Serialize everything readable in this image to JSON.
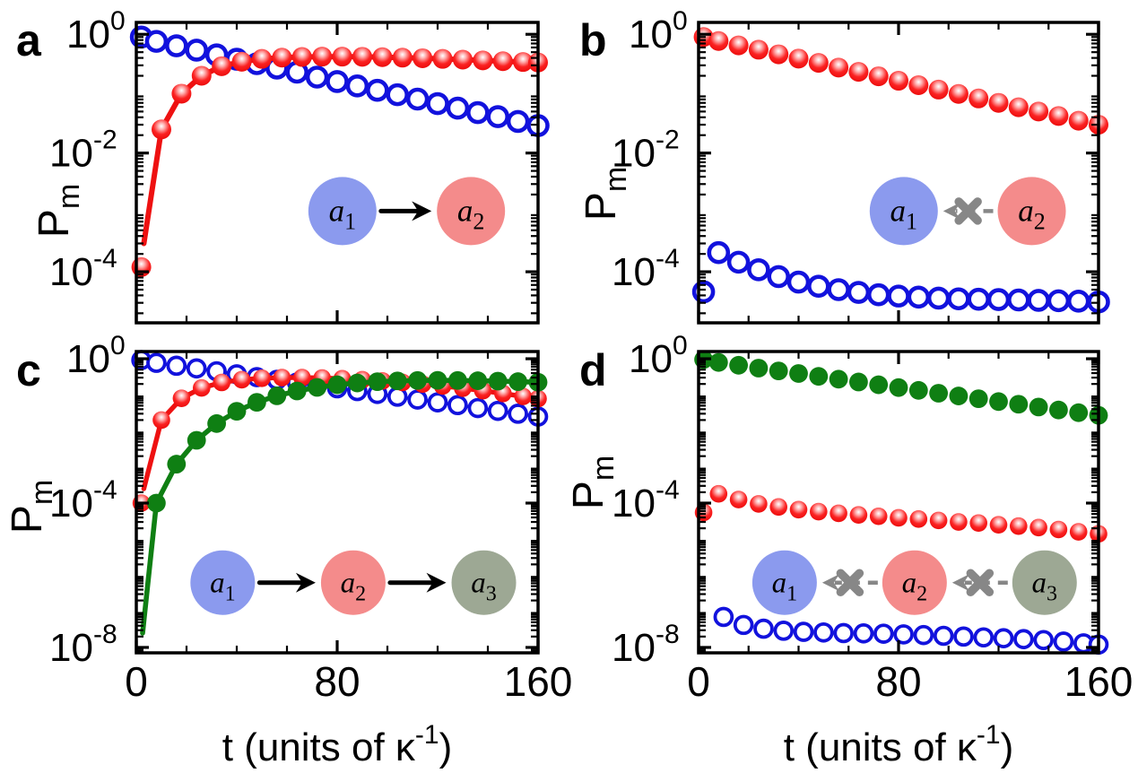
{
  "figure": {
    "x_axis_label": {
      "pre": "t (units of ",
      "symbol": "κ",
      "exponent": "-1",
      "post": ")"
    },
    "y_axis_label": {
      "base": "P",
      "subscript": "m"
    }
  },
  "colors": {
    "blue": "#1212dd",
    "red": "#f01010",
    "red_line": "#ee1111",
    "green": "#0f7f13",
    "inset_blue": "#8b9aee",
    "inset_pink": "#f48b8b",
    "inset_sage": "#9da894",
    "gray_arrow": "#878787",
    "black": "#000000"
  },
  "chart_data": [
    {
      "panel": "a",
      "type": "line",
      "xlim": [
        0,
        160
      ],
      "x_major_ticks": [
        0,
        80,
        160
      ],
      "x_minor_step": 20,
      "show_x_tick_labels": false,
      "y_major_exponents": [
        0,
        -2,
        -4
      ],
      "ylim_exponents": [
        0.2,
        -4.86
      ],
      "series": [
        {
          "id": "a1-open-blue-circles",
          "marker": "open-circle",
          "color_key": "blue",
          "line": true,
          "t": [
            2,
            8,
            16,
            24,
            32,
            40,
            48,
            56,
            64,
            72,
            80,
            88,
            96,
            104,
            112,
            120,
            128,
            136,
            144,
            152,
            160
          ],
          "v": [
            0.9,
            0.76,
            0.64,
            0.54,
            0.45,
            0.38,
            0.32,
            0.27,
            0.23,
            0.19,
            0.16,
            0.135,
            0.114,
            0.096,
            0.081,
            0.068,
            0.057,
            0.048,
            0.041,
            0.034,
            0.029
          ]
        },
        {
          "id": "a2-red-spheres",
          "marker": "sphere",
          "color_key": "red",
          "line": true,
          "t": [
            2,
            10,
            18,
            26,
            34,
            42,
            50,
            58,
            66,
            74,
            82,
            90,
            98,
            106,
            114,
            122,
            130,
            138,
            146,
            154,
            160
          ],
          "v": [
            0.00012,
            0.025,
            0.1,
            0.2,
            0.29,
            0.345,
            0.385,
            0.405,
            0.415,
            0.42,
            0.42,
            0.418,
            0.412,
            0.404,
            0.395,
            0.385,
            0.374,
            0.363,
            0.352,
            0.341,
            0.335
          ],
          "line_t": [
            3,
            10,
            18,
            26,
            34,
            42,
            50,
            58,
            66,
            74,
            82,
            90,
            98,
            106,
            114,
            122,
            130,
            138,
            146,
            154,
            160
          ],
          "line_v": [
            0.0003,
            0.025,
            0.1,
            0.2,
            0.29,
            0.345,
            0.385,
            0.405,
            0.415,
            0.42,
            0.42,
            0.418,
            0.412,
            0.404,
            0.395,
            0.385,
            0.374,
            0.363,
            0.352,
            0.341,
            0.335
          ]
        }
      ],
      "inset": {
        "nodes": [
          {
            "base": "a",
            "sub": "1",
            "fill_key": "inset_blue"
          },
          {
            "base": "a",
            "sub": "2",
            "fill_key": "inset_pink"
          }
        ],
        "links": [
          {
            "from": 0,
            "to": 1,
            "blocked": false
          }
        ]
      }
    },
    {
      "panel": "b",
      "type": "line",
      "xlim": [
        0,
        160
      ],
      "x_major_ticks": [
        0,
        80,
        160
      ],
      "x_minor_step": 20,
      "show_x_tick_labels": false,
      "y_major_exponents": [
        0,
        -2,
        -4
      ],
      "ylim_exponents": [
        0.2,
        -4.86
      ],
      "series": [
        {
          "id": "a2-red-spheres",
          "marker": "sphere",
          "color_key": "red",
          "line": false,
          "t": [
            2,
            8,
            16,
            24,
            32,
            40,
            48,
            56,
            64,
            72,
            80,
            88,
            96,
            104,
            112,
            120,
            128,
            136,
            144,
            152,
            160
          ],
          "v": [
            0.9,
            0.77,
            0.65,
            0.55,
            0.46,
            0.39,
            0.33,
            0.275,
            0.233,
            0.196,
            0.165,
            0.139,
            0.117,
            0.099,
            0.083,
            0.07,
            0.059,
            0.05,
            0.042,
            0.035,
            0.03
          ]
        },
        {
          "id": "a1-open-blue-circles",
          "marker": "open-circle",
          "color_key": "blue",
          "line": false,
          "t": [
            2,
            8,
            16,
            24,
            32,
            40,
            48,
            56,
            64,
            72,
            80,
            88,
            96,
            104,
            112,
            120,
            128,
            136,
            144,
            152,
            160
          ],
          "v": [
            4.6e-05,
            0.00021,
            0.000145,
            0.000108,
            8.3e-05,
            6.7e-05,
            5.7e-05,
            5e-05,
            4.5e-05,
            4.1e-05,
            3.9e-05,
            3.75e-05,
            3.6e-05,
            3.5e-05,
            3.45e-05,
            3.4e-05,
            3.35e-05,
            3.3e-05,
            3.25e-05,
            3.2e-05,
            3.1e-05
          ]
        }
      ],
      "inset": {
        "nodes": [
          {
            "base": "a",
            "sub": "1",
            "fill_key": "inset_blue"
          },
          {
            "base": "a",
            "sub": "2",
            "fill_key": "inset_pink"
          }
        ],
        "links": [
          {
            "from": 1,
            "to": 0,
            "blocked": true
          }
        ]
      }
    },
    {
      "panel": "c",
      "type": "line",
      "xlim": [
        0,
        160
      ],
      "x_major_ticks": [
        0,
        80,
        160
      ],
      "x_minor_step": 20,
      "show_x_tick_labels": true,
      "y_major_exponents": [
        0,
        -4,
        -8
      ],
      "ylim_exponents": [
        0.2,
        -8.15
      ],
      "series": [
        {
          "id": "a1-open-blue-circles",
          "marker": "open-circle",
          "color_key": "blue",
          "line": true,
          "t": [
            2,
            8,
            16,
            24,
            32,
            40,
            48,
            56,
            64,
            72,
            80,
            88,
            96,
            104,
            112,
            120,
            128,
            136,
            144,
            152,
            160
          ],
          "v": [
            0.92,
            0.77,
            0.64,
            0.54,
            0.45,
            0.37,
            0.31,
            0.26,
            0.22,
            0.182,
            0.152,
            0.127,
            0.106,
            0.089,
            0.074,
            0.062,
            0.052,
            0.043,
            0.036,
            0.03,
            0.025
          ]
        },
        {
          "id": "a2-red-spheres",
          "marker": "sphere",
          "color_key": "red",
          "line": true,
          "t": [
            2,
            10,
            18,
            26,
            34,
            42,
            50,
            58,
            66,
            74,
            82,
            90,
            98,
            106,
            114,
            122,
            130,
            138,
            146,
            154,
            160
          ],
          "v": [
            0.0001,
            0.02,
            0.08,
            0.155,
            0.22,
            0.263,
            0.288,
            0.3,
            0.3,
            0.293,
            0.28,
            0.263,
            0.243,
            0.221,
            0.198,
            0.175,
            0.152,
            0.13,
            0.109,
            0.09,
            0.078
          ],
          "line_t": [
            3,
            10,
            18,
            26,
            34,
            42,
            50,
            58,
            66,
            74,
            82,
            90,
            98,
            106,
            114,
            122,
            130,
            138,
            146,
            154,
            160
          ],
          "line_v": [
            0.00025,
            0.02,
            0.08,
            0.155,
            0.22,
            0.263,
            0.288,
            0.3,
            0.3,
            0.293,
            0.28,
            0.263,
            0.243,
            0.221,
            0.198,
            0.175,
            0.152,
            0.13,
            0.109,
            0.09,
            0.078
          ]
        },
        {
          "id": "a3-green-circles",
          "marker": "filled-circle",
          "color_key": "green",
          "line": true,
          "t": [
            8,
            16,
            24,
            32,
            40,
            48,
            56,
            64,
            72,
            80,
            88,
            96,
            104,
            112,
            120,
            128,
            136,
            144,
            152,
            160
          ],
          "v": [
            0.0001,
            0.0012,
            0.0055,
            0.016,
            0.035,
            0.062,
            0.094,
            0.128,
            0.161,
            0.19,
            0.213,
            0.231,
            0.243,
            0.25,
            0.252,
            0.25,
            0.246,
            0.24,
            0.232,
            0.223
          ],
          "line_t": [
            2.5,
            8,
            16,
            24,
            32,
            40,
            48,
            56,
            64,
            72,
            80,
            88,
            96,
            104,
            112,
            120,
            128,
            136,
            144,
            152,
            160
          ],
          "line_v": [
            2.5e-08,
            0.0001,
            0.0012,
            0.0055,
            0.016,
            0.035,
            0.062,
            0.094,
            0.128,
            0.161,
            0.19,
            0.213,
            0.231,
            0.243,
            0.25,
            0.252,
            0.25,
            0.246,
            0.24,
            0.232,
            0.223
          ]
        }
      ],
      "inset": {
        "nodes": [
          {
            "base": "a",
            "sub": "1",
            "fill_key": "inset_blue"
          },
          {
            "base": "a",
            "sub": "2",
            "fill_key": "inset_pink"
          },
          {
            "base": "a",
            "sub": "3",
            "fill_key": "inset_sage"
          }
        ],
        "links": [
          {
            "from": 0,
            "to": 1,
            "blocked": false
          },
          {
            "from": 1,
            "to": 2,
            "blocked": false
          }
        ]
      }
    },
    {
      "panel": "d",
      "type": "line",
      "xlim": [
        0,
        160
      ],
      "x_major_ticks": [
        0,
        80,
        160
      ],
      "x_minor_step": 20,
      "show_x_tick_labels": true,
      "y_major_exponents": [
        0,
        -4,
        -8
      ],
      "ylim_exponents": [
        0.2,
        -8.15
      ],
      "series": [
        {
          "id": "a1-open-blue-circles",
          "marker": "open-circle",
          "color_key": "blue",
          "line": false,
          "t": [
            10,
            18,
            26,
            34,
            42,
            50,
            58,
            66,
            74,
            82,
            90,
            98,
            106,
            114,
            122,
            130,
            138,
            146,
            154,
            160
          ],
          "v": [
            7e-08,
            4.2e-08,
            3.3e-08,
            2.9e-08,
            2.7e-08,
            2.6e-08,
            2.5e-08,
            2.45e-08,
            2.4e-08,
            2.3e-08,
            2.2e-08,
            2.1e-08,
            2e-08,
            1.9e-08,
            1.8e-08,
            1.7e-08,
            1.6e-08,
            1.45e-08,
            1.3e-08,
            1.2e-08
          ]
        },
        {
          "id": "a2-red-spheres",
          "marker": "sphere",
          "color_key": "red",
          "line": false,
          "t": [
            2,
            8,
            16,
            24,
            32,
            40,
            48,
            56,
            64,
            72,
            80,
            88,
            96,
            104,
            112,
            120,
            128,
            136,
            144,
            152,
            160
          ],
          "v": [
            5.5e-05,
            0.00018,
            0.000125,
            9.5e-05,
            7.8e-05,
            6.6e-05,
            5.8e-05,
            5.2e-05,
            4.7e-05,
            4.3e-05,
            3.9e-05,
            3.6e-05,
            3.3e-05,
            3e-05,
            2.8e-05,
            2.5e-05,
            2.3e-05,
            2.1e-05,
            1.85e-05,
            1.6e-05,
            1.4e-05
          ]
        },
        {
          "id": "a3-green-circles",
          "marker": "filled-circle",
          "color_key": "green",
          "line": false,
          "t": [
            2,
            8,
            16,
            24,
            32,
            40,
            48,
            56,
            64,
            72,
            80,
            88,
            96,
            104,
            112,
            120,
            128,
            136,
            144,
            152,
            160
          ],
          "v": [
            0.95,
            0.79,
            0.66,
            0.55,
            0.46,
            0.39,
            0.325,
            0.272,
            0.227,
            0.19,
            0.159,
            0.133,
            0.111,
            0.093,
            0.078,
            0.065,
            0.055,
            0.046,
            0.038,
            0.032,
            0.027
          ]
        }
      ],
      "inset": {
        "nodes": [
          {
            "base": "a",
            "sub": "1",
            "fill_key": "inset_blue"
          },
          {
            "base": "a",
            "sub": "2",
            "fill_key": "inset_pink"
          },
          {
            "base": "a",
            "sub": "3",
            "fill_key": "inset_sage"
          }
        ],
        "links": [
          {
            "from": 1,
            "to": 0,
            "blocked": true
          },
          {
            "from": 2,
            "to": 1,
            "blocked": true
          }
        ]
      }
    }
  ]
}
